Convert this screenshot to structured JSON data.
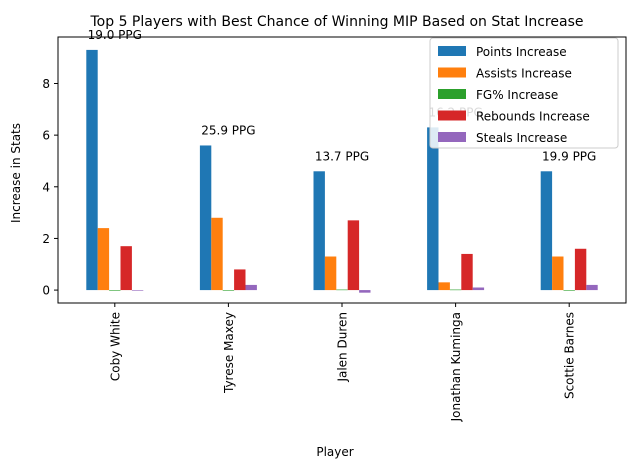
{
  "chart_data": {
    "type": "bar",
    "title": "Top 5 Players with Best Chance of Winning MIP Based on Stat Increase",
    "xlabel": "Player",
    "ylabel": "Increase in Stats",
    "categories": [
      "Coby White",
      "Tyrese Maxey",
      "Jalen Duren",
      "Jonathan Kuminga",
      "Scottie Barnes"
    ],
    "series": [
      {
        "name": "Points Increase",
        "color": "#1f77b4",
        "values": [
          9.3,
          5.6,
          4.6,
          6.3,
          4.6
        ]
      },
      {
        "name": "Assists Increase",
        "color": "#ff7f0e",
        "values": [
          2.4,
          2.8,
          1.3,
          0.3,
          1.3
        ]
      },
      {
        "name": "FG% Increase",
        "color": "#2ca02c",
        "values": [
          0.0,
          -0.02,
          0.02,
          0.02,
          0.0
        ]
      },
      {
        "name": "Rebounds Increase",
        "color": "#d62728",
        "values": [
          1.7,
          0.8,
          2.7,
          1.4,
          1.6
        ]
      },
      {
        "name": "Steals Increase",
        "color": "#9467bd",
        "values": [
          0.0,
          0.2,
          -0.1,
          0.1,
          0.2
        ]
      }
    ],
    "annotations": [
      "19.0 PPG",
      "25.9 PPG",
      "13.7 PPG",
      "16.2 PPG",
      "19.9 PPG"
    ],
    "ylim": [
      -0.5,
      9.8
    ],
    "yticks": [
      0,
      2,
      4,
      6,
      8
    ],
    "legend_position": "top-right",
    "grid": false
  }
}
